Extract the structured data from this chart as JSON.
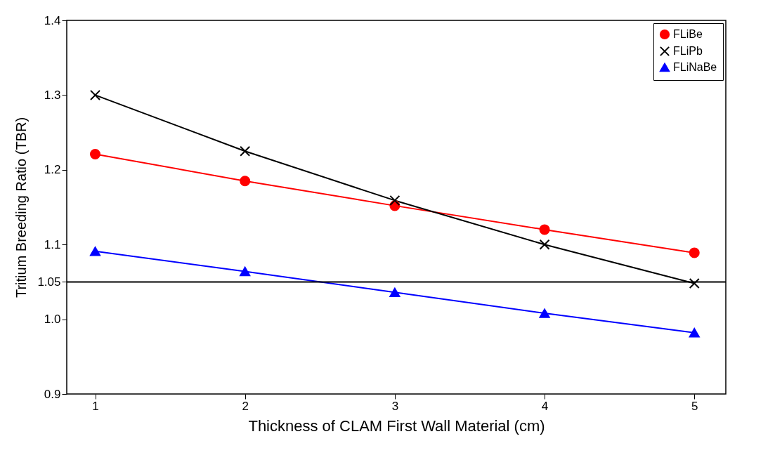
{
  "chart_data": {
    "type": "line",
    "xlabel": "Thickness of CLAM First Wall Material (cm)",
    "ylabel": "Tritium Breeding Ratio (TBR)",
    "x": [
      1,
      2,
      3,
      4,
      5
    ],
    "series": [
      {
        "name": "FLiBe",
        "color": "#ff0000",
        "marker": "circle",
        "values": [
          1.221,
          1.185,
          1.152,
          1.12,
          1.089
        ]
      },
      {
        "name": "FLiPb",
        "color": "#000000",
        "marker": "cross",
        "values": [
          1.3,
          1.225,
          1.159,
          1.1,
          1.048
        ]
      },
      {
        "name": "FLiNaBe",
        "color": "#0000ff",
        "marker": "triangle",
        "values": [
          1.091,
          1.064,
          1.036,
          1.008,
          0.982
        ]
      }
    ],
    "xlim": [
      0.81,
      5.21
    ],
    "xticks": [
      1,
      2,
      3,
      4,
      5
    ],
    "ylim": [
      0.9,
      1.4
    ],
    "yticks": [
      {
        "value": 0.9,
        "label": "0.9"
      },
      {
        "value": 1,
        "label": "1.0"
      },
      1.05,
      1.1,
      1.2,
      1.3,
      1.4
    ],
    "ref_lines": [
      {
        "axis": "y",
        "value": 1.05,
        "color": "#000000"
      }
    ],
    "legend": "top right",
    "grid": false
  }
}
